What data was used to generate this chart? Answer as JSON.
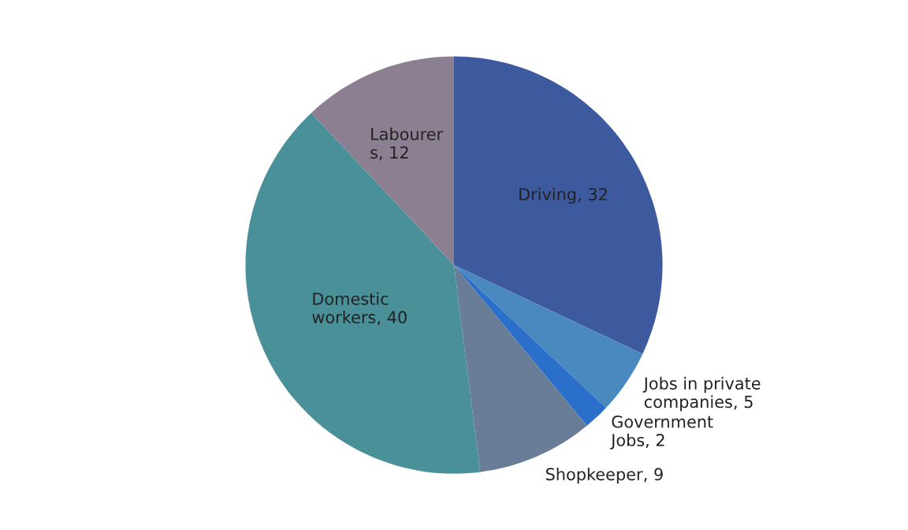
{
  "chart_data": {
    "type": "pie",
    "categories": [
      "Driving",
      "Jobs in private\ncompanies",
      "Government\nJobs",
      "Shopkeeper",
      "Domestic\nworkers",
      "Labourer\ns"
    ],
    "values": [
      32,
      5,
      2,
      9,
      40,
      12
    ],
    "value_labels": [
      ", 32",
      ", 5",
      ", 2",
      ", 9",
      ", 40",
      ", 12"
    ],
    "colors": [
      "#3d5a9e",
      "#4a88c0",
      "#2a6fc9",
      "#6a7d96",
      "#4a9098",
      "#8c7f92"
    ],
    "legend": false
  }
}
